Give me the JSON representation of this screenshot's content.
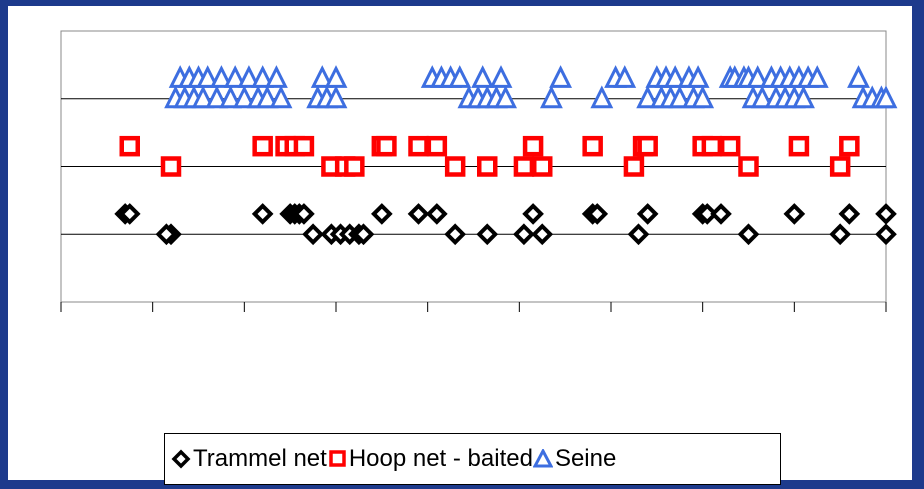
{
  "chart_data": {
    "type": "scatter",
    "title": "",
    "xlabel": "",
    "ylabel": "",
    "grid": "horizontal",
    "legend_position": "bottom",
    "xlim": [
      0,
      9
    ],
    "ylim": [
      0,
      4
    ],
    "series": [
      {
        "name": "Trammel net",
        "marker": "diamond",
        "color": "#000000",
        "points": [
          {
            "x": 0.7,
            "y": 1.3
          },
          {
            "x": 0.75,
            "y": 1.3
          },
          {
            "x": 1.2,
            "y": 1.0
          },
          {
            "x": 1.15,
            "y": 1.0
          },
          {
            "x": 2.2,
            "y": 1.3
          },
          {
            "x": 2.5,
            "y": 1.3
          },
          {
            "x": 2.55,
            "y": 1.3
          },
          {
            "x": 2.6,
            "y": 1.3
          },
          {
            "x": 2.65,
            "y": 1.3
          },
          {
            "x": 2.75,
            "y": 1.0
          },
          {
            "x": 2.95,
            "y": 1.0
          },
          {
            "x": 3.05,
            "y": 1.0
          },
          {
            "x": 3.15,
            "y": 1.0
          },
          {
            "x": 3.25,
            "y": 1.0
          },
          {
            "x": 3.3,
            "y": 1.0
          },
          {
            "x": 3.5,
            "y": 1.3
          },
          {
            "x": 3.9,
            "y": 1.3
          },
          {
            "x": 4.1,
            "y": 1.3
          },
          {
            "x": 4.3,
            "y": 1.0
          },
          {
            "x": 4.65,
            "y": 1.0
          },
          {
            "x": 5.05,
            "y": 1.0
          },
          {
            "x": 5.15,
            "y": 1.3
          },
          {
            "x": 5.25,
            "y": 1.0
          },
          {
            "x": 5.8,
            "y": 1.3
          },
          {
            "x": 5.85,
            "y": 1.3
          },
          {
            "x": 6.3,
            "y": 1.0
          },
          {
            "x": 6.4,
            "y": 1.3
          },
          {
            "x": 7.0,
            "y": 1.3
          },
          {
            "x": 7.05,
            "y": 1.3
          },
          {
            "x": 7.2,
            "y": 1.3
          },
          {
            "x": 7.5,
            "y": 1.0
          },
          {
            "x": 8.0,
            "y": 1.3
          },
          {
            "x": 8.5,
            "y": 1.0
          },
          {
            "x": 8.6,
            "y": 1.3
          },
          {
            "x": 9.0,
            "y": 1.3
          },
          {
            "x": 9.0,
            "y": 1.0
          }
        ]
      },
      {
        "name": "Hoop net - baited",
        "marker": "square",
        "color": "#ff0000",
        "points": [
          {
            "x": 0.75,
            "y": 2.3
          },
          {
            "x": 1.2,
            "y": 2.0
          },
          {
            "x": 2.2,
            "y": 2.3
          },
          {
            "x": 2.45,
            "y": 2.3
          },
          {
            "x": 2.55,
            "y": 2.3
          },
          {
            "x": 2.65,
            "y": 2.3
          },
          {
            "x": 2.95,
            "y": 2.0
          },
          {
            "x": 3.1,
            "y": 2.0
          },
          {
            "x": 3.2,
            "y": 2.0
          },
          {
            "x": 3.5,
            "y": 2.3
          },
          {
            "x": 3.55,
            "y": 2.3
          },
          {
            "x": 3.9,
            "y": 2.3
          },
          {
            "x": 4.1,
            "y": 2.3
          },
          {
            "x": 4.3,
            "y": 2.0
          },
          {
            "x": 4.65,
            "y": 2.0
          },
          {
            "x": 5.05,
            "y": 2.0
          },
          {
            "x": 5.15,
            "y": 2.3
          },
          {
            "x": 5.25,
            "y": 2.0
          },
          {
            "x": 5.8,
            "y": 2.3
          },
          {
            "x": 6.25,
            "y": 2.0
          },
          {
            "x": 6.35,
            "y": 2.3
          },
          {
            "x": 6.4,
            "y": 2.3
          },
          {
            "x": 7.0,
            "y": 2.3
          },
          {
            "x": 7.1,
            "y": 2.3
          },
          {
            "x": 7.3,
            "y": 2.3
          },
          {
            "x": 7.5,
            "y": 2.0
          },
          {
            "x": 8.05,
            "y": 2.3
          },
          {
            "x": 8.5,
            "y": 2.0
          },
          {
            "x": 8.6,
            "y": 2.3
          }
        ]
      },
      {
        "name": "Seine",
        "marker": "triangle",
        "color": "#3d6ee0",
        "points": [
          {
            "x": 1.25,
            "y": 3.0
          },
          {
            "x": 1.3,
            "y": 3.3
          },
          {
            "x": 1.35,
            "y": 3.0
          },
          {
            "x": 1.4,
            "y": 3.3
          },
          {
            "x": 1.45,
            "y": 3.0
          },
          {
            "x": 1.5,
            "y": 3.3
          },
          {
            "x": 1.55,
            "y": 3.0
          },
          {
            "x": 1.6,
            "y": 3.3
          },
          {
            "x": 1.7,
            "y": 3.0
          },
          {
            "x": 1.75,
            "y": 3.3
          },
          {
            "x": 1.85,
            "y": 3.0
          },
          {
            "x": 1.9,
            "y": 3.3
          },
          {
            "x": 2.0,
            "y": 3.0
          },
          {
            "x": 2.05,
            "y": 3.3
          },
          {
            "x": 2.15,
            "y": 3.0
          },
          {
            "x": 2.2,
            "y": 3.3
          },
          {
            "x": 2.25,
            "y": 3.0
          },
          {
            "x": 2.35,
            "y": 3.3
          },
          {
            "x": 2.4,
            "y": 3.0
          },
          {
            "x": 2.8,
            "y": 3.0
          },
          {
            "x": 2.85,
            "y": 3.3
          },
          {
            "x": 2.9,
            "y": 3.0
          },
          {
            "x": 3.0,
            "y": 3.3
          },
          {
            "x": 3.0,
            "y": 3.0
          },
          {
            "x": 4.05,
            "y": 3.3
          },
          {
            "x": 4.15,
            "y": 3.3
          },
          {
            "x": 4.25,
            "y": 3.3
          },
          {
            "x": 4.35,
            "y": 3.3
          },
          {
            "x": 4.45,
            "y": 3.0
          },
          {
            "x": 4.55,
            "y": 3.0
          },
          {
            "x": 4.6,
            "y": 3.3
          },
          {
            "x": 4.65,
            "y": 3.0
          },
          {
            "x": 4.75,
            "y": 3.0
          },
          {
            "x": 4.8,
            "y": 3.3
          },
          {
            "x": 4.85,
            "y": 3.0
          },
          {
            "x": 5.35,
            "y": 3.0
          },
          {
            "x": 5.45,
            "y": 3.3
          },
          {
            "x": 5.9,
            "y": 3.0
          },
          {
            "x": 6.05,
            "y": 3.3
          },
          {
            "x": 6.15,
            "y": 3.3
          },
          {
            "x": 6.4,
            "y": 3.0
          },
          {
            "x": 6.5,
            "y": 3.3
          },
          {
            "x": 6.55,
            "y": 3.0
          },
          {
            "x": 6.6,
            "y": 3.3
          },
          {
            "x": 6.65,
            "y": 3.0
          },
          {
            "x": 6.7,
            "y": 3.3
          },
          {
            "x": 6.75,
            "y": 3.0
          },
          {
            "x": 6.85,
            "y": 3.3
          },
          {
            "x": 6.9,
            "y": 3.0
          },
          {
            "x": 6.95,
            "y": 3.3
          },
          {
            "x": 7.0,
            "y": 3.0
          },
          {
            "x": 7.3,
            "y": 3.3
          },
          {
            "x": 7.35,
            "y": 3.3
          },
          {
            "x": 7.45,
            "y": 3.3
          },
          {
            "x": 7.5,
            "y": 3.3
          },
          {
            "x": 7.55,
            "y": 3.0
          },
          {
            "x": 7.6,
            "y": 3.3
          },
          {
            "x": 7.65,
            "y": 3.0
          },
          {
            "x": 7.75,
            "y": 3.3
          },
          {
            "x": 7.8,
            "y": 3.0
          },
          {
            "x": 7.85,
            "y": 3.3
          },
          {
            "x": 7.9,
            "y": 3.0
          },
          {
            "x": 7.95,
            "y": 3.3
          },
          {
            "x": 8.0,
            "y": 3.0
          },
          {
            "x": 8.05,
            "y": 3.3
          },
          {
            "x": 8.1,
            "y": 3.0
          },
          {
            "x": 8.15,
            "y": 3.3
          },
          {
            "x": 8.25,
            "y": 3.3
          },
          {
            "x": 8.7,
            "y": 3.3
          },
          {
            "x": 8.75,
            "y": 3.0
          },
          {
            "x": 8.85,
            "y": 3.0
          },
          {
            "x": 8.95,
            "y": 3.0
          },
          {
            "x": 9.0,
            "y": 3.0
          }
        ]
      }
    ]
  }
}
